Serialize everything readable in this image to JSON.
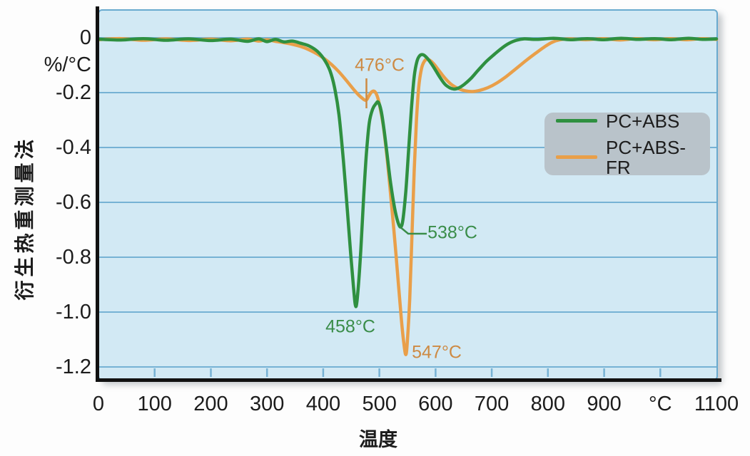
{
  "chart_data": {
    "type": "line",
    "title": "",
    "xlabel": "温度",
    "ylabel": "衍生热重测量法",
    "y_unit_label": "%/°C",
    "xlim": [
      0,
      1100
    ],
    "ylim": [
      -1.2,
      0
    ],
    "grid": "horizontal",
    "legend_position": "upper-right",
    "x_ticks": {
      "values": [
        0,
        100,
        200,
        300,
        400,
        500,
        600,
        700,
        800,
        900,
        1000,
        1100
      ],
      "labels": [
        "0",
        "100",
        "200",
        "300",
        "400",
        "500",
        "600",
        "700",
        "800",
        "900",
        "°C",
        "1100"
      ]
    },
    "y_ticks": {
      "values": [
        0,
        -0.2,
        -0.4,
        -0.6,
        -0.8,
        -1.0,
        -1.2
      ],
      "labels": [
        "0",
        "-0.2",
        "-0.4",
        "-0.6",
        "-0.8",
        "-1.0",
        "-1.2"
      ]
    },
    "series": [
      {
        "name": "PC+ABS",
        "color": "#2f9040",
        "points": [
          [
            0,
            -0.005
          ],
          [
            40,
            -0.008
          ],
          [
            80,
            -0.003
          ],
          [
            120,
            -0.009
          ],
          [
            160,
            -0.004
          ],
          [
            200,
            -0.01
          ],
          [
            235,
            -0.005
          ],
          [
            265,
            -0.013
          ],
          [
            285,
            -0.004
          ],
          [
            300,
            -0.014
          ],
          [
            315,
            -0.006
          ],
          [
            330,
            -0.015
          ],
          [
            345,
            -0.012
          ],
          [
            360,
            -0.02
          ],
          [
            375,
            -0.03
          ],
          [
            390,
            -0.05
          ],
          [
            402,
            -0.08
          ],
          [
            412,
            -0.12
          ],
          [
            420,
            -0.18
          ],
          [
            428,
            -0.28
          ],
          [
            436,
            -0.45
          ],
          [
            443,
            -0.63
          ],
          [
            449,
            -0.79
          ],
          [
            454,
            -0.91
          ],
          [
            458,
            -0.98
          ],
          [
            462,
            -0.92
          ],
          [
            467,
            -0.77
          ],
          [
            472,
            -0.58
          ],
          [
            477,
            -0.42
          ],
          [
            482,
            -0.31
          ],
          [
            488,
            -0.26
          ],
          [
            494,
            -0.24
          ],
          [
            498,
            -0.235
          ],
          [
            503,
            -0.265
          ],
          [
            508,
            -0.33
          ],
          [
            514,
            -0.43
          ],
          [
            520,
            -0.53
          ],
          [
            527,
            -0.62
          ],
          [
            533,
            -0.672
          ],
          [
            538,
            -0.69
          ],
          [
            542,
            -0.662
          ],
          [
            547,
            -0.56
          ],
          [
            552,
            -0.41
          ],
          [
            557,
            -0.26
          ],
          [
            562,
            -0.14
          ],
          [
            567,
            -0.085
          ],
          [
            572,
            -0.065
          ],
          [
            578,
            -0.062
          ],
          [
            584,
            -0.072
          ],
          [
            591,
            -0.09
          ],
          [
            599,
            -0.115
          ],
          [
            608,
            -0.145
          ],
          [
            617,
            -0.17
          ],
          [
            626,
            -0.183
          ],
          [
            633,
            -0.187
          ],
          [
            641,
            -0.183
          ],
          [
            651,
            -0.17
          ],
          [
            663,
            -0.148
          ],
          [
            676,
            -0.118
          ],
          [
            691,
            -0.085
          ],
          [
            706,
            -0.058
          ],
          [
            719,
            -0.036
          ],
          [
            731,
            -0.02
          ],
          [
            744,
            -0.009
          ],
          [
            758,
            -0.004
          ],
          [
            780,
            -0.006
          ],
          [
            810,
            -0.002
          ],
          [
            840,
            -0.007
          ],
          [
            870,
            -0.003
          ],
          [
            900,
            -0.007
          ],
          [
            930,
            -0.002
          ],
          [
            960,
            -0.006
          ],
          [
            990,
            -0.003
          ],
          [
            1020,
            -0.007
          ],
          [
            1050,
            -0.002
          ],
          [
            1075,
            -0.006
          ],
          [
            1100,
            -0.004
          ]
        ]
      },
      {
        "name": "PC+ABS-FR",
        "color": "#e99f49",
        "points": [
          [
            0,
            -0.007
          ],
          [
            40,
            -0.003
          ],
          [
            80,
            -0.009
          ],
          [
            120,
            -0.004
          ],
          [
            160,
            -0.01
          ],
          [
            200,
            -0.005
          ],
          [
            235,
            -0.011
          ],
          [
            265,
            -0.005
          ],
          [
            285,
            -0.012
          ],
          [
            300,
            -0.007
          ],
          [
            315,
            -0.013
          ],
          [
            330,
            -0.018
          ],
          [
            345,
            -0.024
          ],
          [
            360,
            -0.032
          ],
          [
            375,
            -0.044
          ],
          [
            390,
            -0.06
          ],
          [
            403,
            -0.078
          ],
          [
            415,
            -0.098
          ],
          [
            427,
            -0.122
          ],
          [
            439,
            -0.15
          ],
          [
            450,
            -0.178
          ],
          [
            460,
            -0.202
          ],
          [
            468,
            -0.218
          ],
          [
            476,
            -0.228
          ],
          [
            481,
            -0.213
          ],
          [
            486,
            -0.198
          ],
          [
            491,
            -0.195
          ],
          [
            496,
            -0.212
          ],
          [
            501,
            -0.252
          ],
          [
            507,
            -0.322
          ],
          [
            513,
            -0.425
          ],
          [
            519,
            -0.55
          ],
          [
            526,
            -0.705
          ],
          [
            533,
            -0.875
          ],
          [
            539,
            -1.025
          ],
          [
            543,
            -1.105
          ],
          [
            547,
            -1.155
          ],
          [
            550,
            -1.1
          ],
          [
            554,
            -0.95
          ],
          [
            558,
            -0.72
          ],
          [
            562,
            -0.48
          ],
          [
            566,
            -0.3
          ],
          [
            570,
            -0.18
          ],
          [
            575,
            -0.112
          ],
          [
            580,
            -0.086
          ],
          [
            585,
            -0.078
          ],
          [
            591,
            -0.084
          ],
          [
            598,
            -0.098
          ],
          [
            607,
            -0.122
          ],
          [
            617,
            -0.148
          ],
          [
            628,
            -0.17
          ],
          [
            640,
            -0.185
          ],
          [
            652,
            -0.193
          ],
          [
            665,
            -0.196
          ],
          [
            678,
            -0.192
          ],
          [
            693,
            -0.182
          ],
          [
            709,
            -0.165
          ],
          [
            726,
            -0.141
          ],
          [
            743,
            -0.113
          ],
          [
            761,
            -0.083
          ],
          [
            779,
            -0.055
          ],
          [
            794,
            -0.033
          ],
          [
            808,
            -0.016
          ],
          [
            822,
            -0.007
          ],
          [
            840,
            -0.004
          ],
          [
            868,
            -0.007
          ],
          [
            898,
            -0.003
          ],
          [
            928,
            -0.008
          ],
          [
            958,
            -0.003
          ],
          [
            988,
            -0.007
          ],
          [
            1018,
            -0.003
          ],
          [
            1048,
            -0.007
          ],
          [
            1075,
            -0.003
          ],
          [
            1100,
            -0.006
          ]
        ]
      }
    ],
    "annotations": [
      {
        "id": "a476",
        "text": "476°C",
        "color": "#cd8a43",
        "target_series": "PC+ABS-FR",
        "temp": 476,
        "value": -0.23
      },
      {
        "id": "a538",
        "text": "538°C",
        "color": "#3a8d49",
        "target_series": "PC+ABS",
        "temp": 538,
        "value": -0.69
      },
      {
        "id": "a458",
        "text": "458°C",
        "color": "#3a8d49",
        "target_series": "PC+ABS",
        "temp": 458,
        "value": -0.99
      },
      {
        "id": "a547",
        "text": "547°C",
        "color": "#cd8a43",
        "target_series": "PC+ABS-FR",
        "temp": 547,
        "value": -1.16
      }
    ]
  },
  "colors": {
    "plot_bg": "#d2e9f4",
    "gridline": "#76b2d4",
    "border": "#69aacf",
    "axis": "#111111",
    "legend_bg": "#b9c3ca",
    "text": "#1c1c1c"
  }
}
